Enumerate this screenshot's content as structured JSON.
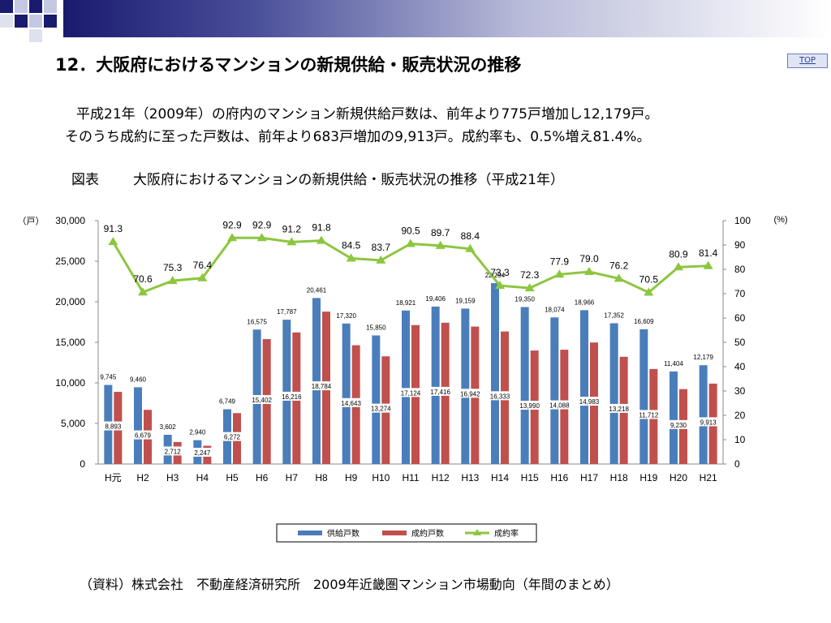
{
  "slide": {
    "title": "12．大阪府におけるマンションの新規供給・販売状況の推移",
    "top_link": "TOP",
    "lead_line1": "平成21年（2009年）の府内のマンション新規供給戸数は、前年より775戸増加し12,179戸。",
    "lead_line2": "そのうち成約に至った戸数は、前年より683戸増加の9,913戸。成約率も、0.5%増え81.4%。",
    "figure_label": "図表",
    "figure_title": "大阪府におけるマンションの新規供給・販売状況の推移（平成21年）",
    "source": "（資料）株式会社　不動産経済研究所　2009年近畿圏マンション市場動向（年間のまとめ）"
  },
  "colors": {
    "supply": "#4a7ebb",
    "contracts": "#c0504d",
    "rate": "#8cc63f",
    "header_dark": "#1a1a6e"
  },
  "chart_data": {
    "type": "bar",
    "categories": [
      "H元",
      "H2",
      "H3",
      "H4",
      "H5",
      "H6",
      "H7",
      "H8",
      "H9",
      "H10",
      "H11",
      "H12",
      "H13",
      "H14",
      "H15",
      "H16",
      "H17",
      "H18",
      "H19",
      "H20",
      "H21"
    ],
    "series": [
      {
        "name": "供給戸数",
        "type": "bar",
        "axis": "left",
        "values": [
          9745,
          9460,
          3602,
          2940,
          6749,
          16575,
          17787,
          20461,
          17320,
          15850,
          18921,
          19406,
          19159,
          22294,
          19350,
          18074,
          18966,
          17352,
          16609,
          11404,
          12179
        ]
      },
      {
        "name": "成約戸数",
        "type": "bar",
        "axis": "left",
        "values": [
          8893,
          6679,
          2712,
          2247,
          6272,
          15402,
          16216,
          18784,
          14643,
          13274,
          17124,
          17416,
          16942,
          16333,
          13990,
          14088,
          14983,
          13218,
          11712,
          9230,
          9913
        ]
      },
      {
        "name": "成約率",
        "type": "line",
        "axis": "right",
        "values": [
          91.3,
          70.6,
          75.3,
          76.4,
          92.9,
          92.9,
          91.2,
          91.8,
          84.5,
          83.7,
          90.5,
          89.7,
          88.4,
          73.3,
          72.3,
          77.9,
          79.0,
          76.2,
          70.5,
          80.9,
          81.4
        ]
      }
    ],
    "y_left": {
      "unit": "（戸）",
      "ylim": [
        0,
        30000
      ],
      "ticks": [
        "0",
        "5,000",
        "10,000",
        "15,000",
        "20,000",
        "25,000",
        "30,000"
      ]
    },
    "y_right": {
      "unit": "(%)",
      "ylim": [
        0,
        100
      ],
      "ticks": [
        "0",
        "10",
        "20",
        "30",
        "40",
        "50",
        "60",
        "70",
        "80",
        "90",
        "100"
      ]
    },
    "supply_labels": [
      "9,745",
      "9,460",
      "3,602",
      "2,940",
      "6,749",
      "16,575",
      "17,787",
      "20,461",
      "17,320",
      "15,850",
      "18,921",
      "19,406",
      "19,159",
      "22,294",
      "19,350",
      "18,074",
      "18,966",
      "17,352",
      "16,609",
      "11,404",
      "12,179"
    ],
    "contract_labels": [
      "8,893",
      "6,679",
      "2,712",
      "2,247",
      "6,272",
      "15,402",
      "16,216",
      "18,784",
      "14,643",
      "13,274",
      "17,124",
      "17,416",
      "16,942",
      "16,333",
      "13,990",
      "14,088",
      "14,983",
      "13,218",
      "11,712",
      "9,230",
      "9,913"
    ],
    "rate_labels": [
      "91.3",
      "70.6",
      "75.3",
      "76.4",
      "92.9",
      "92.9",
      "91.2",
      "91.8",
      "84.5",
      "83.7",
      "90.5",
      "89.7",
      "88.4",
      "73.3",
      "72.3",
      "77.9",
      "79.0",
      "76.2",
      "70.5",
      "80.9",
      "81.4"
    ],
    "legend": [
      "供給戸数",
      "成約戸数",
      "成約率"
    ],
    "legend_position": "bottom",
    "grid": false
  }
}
